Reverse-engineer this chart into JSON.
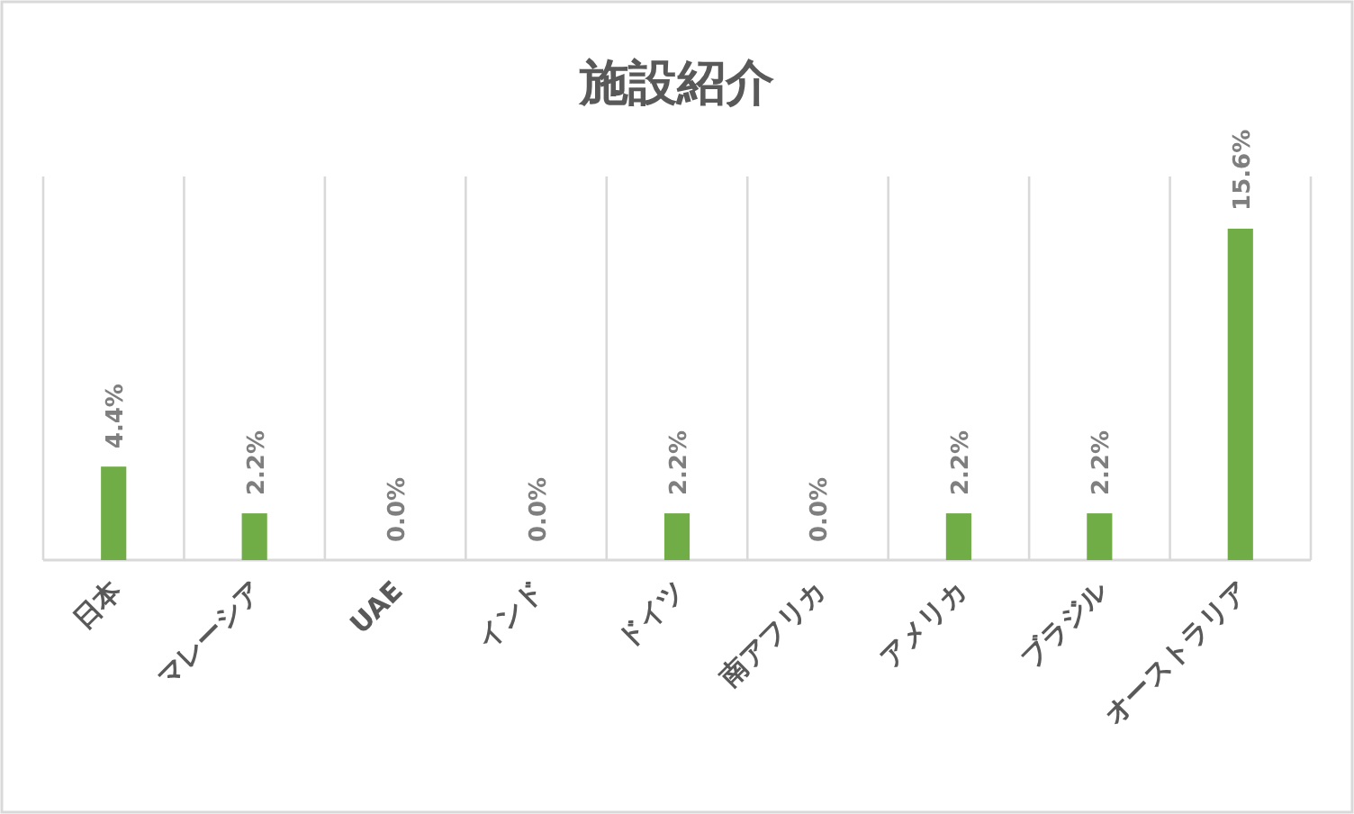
{
  "chart_data": {
    "type": "bar",
    "title": "施設紹介",
    "categories": [
      "日本",
      "マレーシア",
      "UAE",
      "インド",
      "ドイツ",
      "南アフリカ",
      "アメリカ",
      "ブラジル",
      "オーストラリア"
    ],
    "values": [
      4.4,
      2.2,
      0,
      0,
      2.2,
      0,
      2.2,
      2.2,
      15.6
    ],
    "value_labels": [
      "4.4%",
      "2.2%",
      "0.0%",
      "0.0%",
      "2.2%",
      "0.0%",
      "2.2%",
      "2.2%",
      "15.6%"
    ],
    "color": "#70ad47",
    "grid": "x"
  }
}
